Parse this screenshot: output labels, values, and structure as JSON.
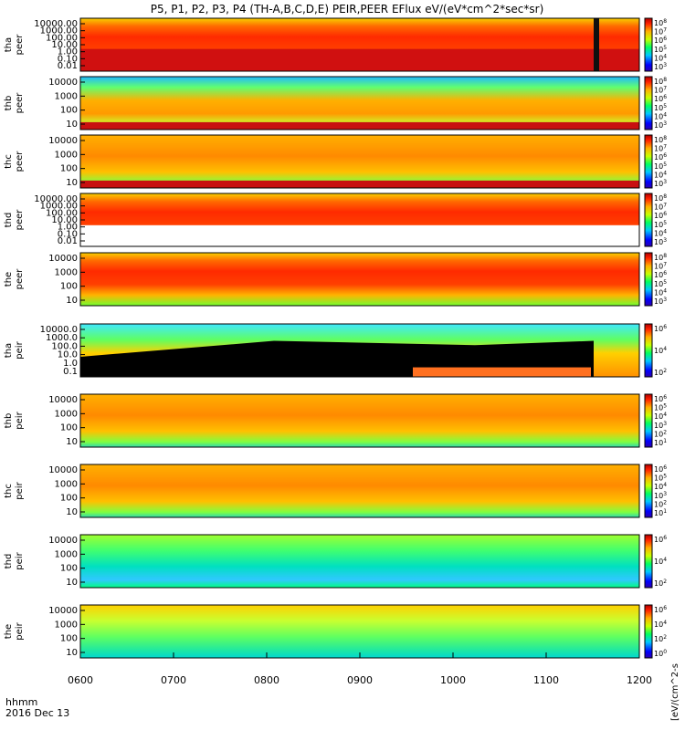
{
  "title": "P5, P1, P2, P3, P4 (TH-A,B,C,D,E) PEIR,PEER EFlux eV/(eV*cm^2*sec*sr)",
  "colorbar_unit_label": "[eV/(cm^2-s",
  "time_label": "hhmm",
  "date_label": "2016 Dec 13",
  "colors": {
    "low": "#0000ff",
    "mid": "#00ff00",
    "high": "#ff0000",
    "background": "#ffffff",
    "fill": "#000000"
  },
  "chart_data": {
    "type": "heatmap",
    "x_ticks": [
      "0600",
      "0700",
      "0800",
      "0900",
      "1000",
      "1100",
      "1200"
    ],
    "x_range": [
      "0600",
      "1200"
    ],
    "panels": [
      {
        "probe": "tha",
        "species": "peer",
        "yticks": [
          "10000.00",
          "1000.00",
          "100.00",
          "10.00",
          "1.00",
          "0.10",
          "0.01"
        ],
        "cbar_ticks": [
          "10^8",
          "10^7",
          "10^6",
          "10^5",
          "10^4",
          "10^3"
        ]
      },
      {
        "probe": "thb",
        "species": "peer",
        "yticks": [
          "10000",
          "1000",
          "100",
          "10"
        ],
        "cbar_ticks": [
          "10^8",
          "10^7",
          "10^6",
          "10^5",
          "10^4",
          "10^3"
        ]
      },
      {
        "probe": "thc",
        "species": "peer",
        "yticks": [
          "10000",
          "1000",
          "100",
          "10"
        ],
        "cbar_ticks": [
          "10^8",
          "10^7",
          "10^6",
          "10^5",
          "10^4",
          "10^3"
        ]
      },
      {
        "probe": "thd",
        "species": "peer",
        "yticks": [
          "10000.00",
          "1000.00",
          "100.00",
          "10.00",
          "1.00",
          "0.10",
          "0.01"
        ],
        "cbar_ticks": [
          "10^8",
          "10^7",
          "10^6",
          "10^5",
          "10^4",
          "10^3"
        ]
      },
      {
        "probe": "the",
        "species": "peer",
        "yticks": [
          "10000",
          "1000",
          "100",
          "10"
        ],
        "cbar_ticks": [
          "10^8",
          "10^7",
          "10^6",
          "10^5",
          "10^4",
          "10^3"
        ]
      },
      {
        "probe": "tha",
        "species": "peir",
        "yticks": [
          "10000.0",
          "1000.0",
          "100.0",
          "10.0",
          "1.0",
          "0.1"
        ],
        "cbar_ticks": [
          "10^6",
          "10^4",
          "10^2"
        ]
      },
      {
        "probe": "thb",
        "species": "peir",
        "yticks": [
          "10000",
          "1000",
          "100",
          "10"
        ],
        "cbar_ticks": [
          "10^6",
          "10^5",
          "10^4",
          "10^3",
          "10^2",
          "10^1"
        ]
      },
      {
        "probe": "thc",
        "species": "peir",
        "yticks": [
          "10000",
          "1000",
          "100",
          "10"
        ],
        "cbar_ticks": [
          "10^6",
          "10^5",
          "10^4",
          "10^3",
          "10^2",
          "10^1"
        ]
      },
      {
        "probe": "thd",
        "species": "peir",
        "yticks": [
          "10000",
          "1000",
          "100",
          "10"
        ],
        "cbar_ticks": [
          "10^6",
          "10^4",
          "10^2"
        ]
      },
      {
        "probe": "the",
        "species": "peir",
        "yticks": [
          "10000",
          "1000",
          "100",
          "10"
        ],
        "cbar_ticks": [
          "10^6",
          "10^4",
          "10^2",
          "10^0"
        ]
      }
    ]
  }
}
